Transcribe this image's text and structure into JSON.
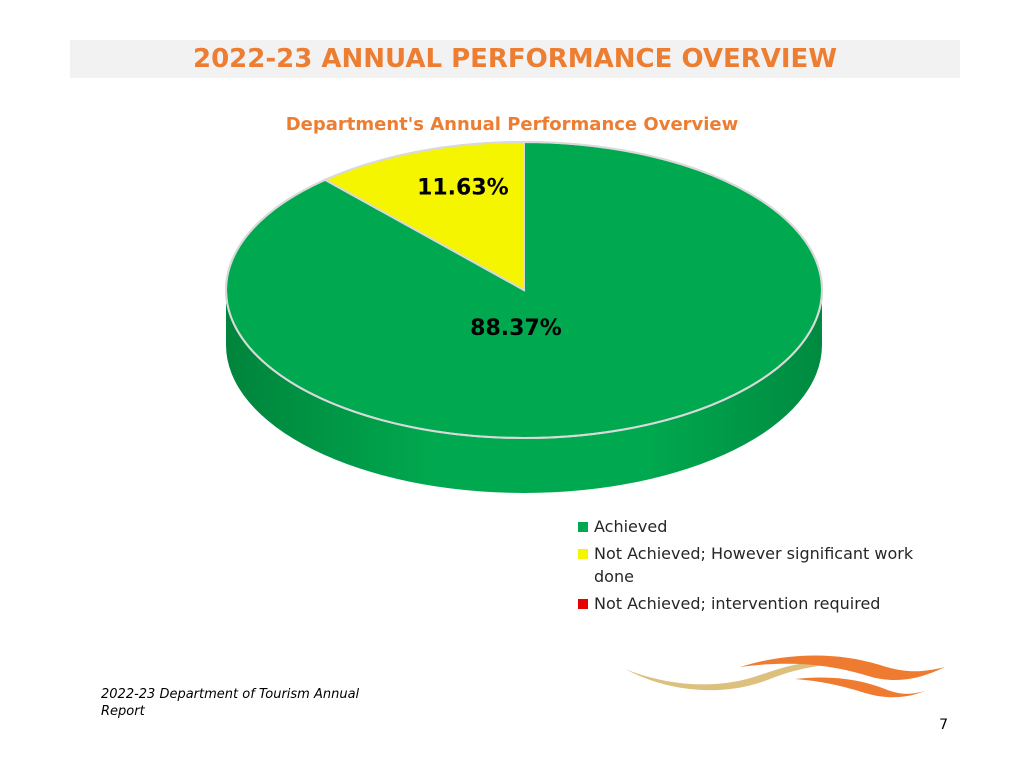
{
  "page": {
    "title": "2022-23 ANNUAL PERFORMANCE OVERVIEW",
    "footer": "2022-23 Department of Tourism Annual Report",
    "page_number": "7"
  },
  "colors": {
    "accent": "#ed7d31",
    "achieved": "#00a94f",
    "significant_work": "#f5f500",
    "intervention": "#e60000"
  },
  "logo": {
    "icon": "swoosh-logo-icon"
  },
  "chart_data": {
    "type": "pie",
    "title": "Department's Annual Performance Overview",
    "style": "3d",
    "legend_position": "bottom-right",
    "categories": [
      "Achieved",
      "Not Achieved; However significant work done",
      "Not Achieved; intervention required"
    ],
    "values": [
      88.37,
      11.63,
      0
    ],
    "labels": [
      "88.37%",
      "11.63%",
      ""
    ],
    "colors": [
      "#00a94f",
      "#f5f500",
      "#e60000"
    ]
  }
}
